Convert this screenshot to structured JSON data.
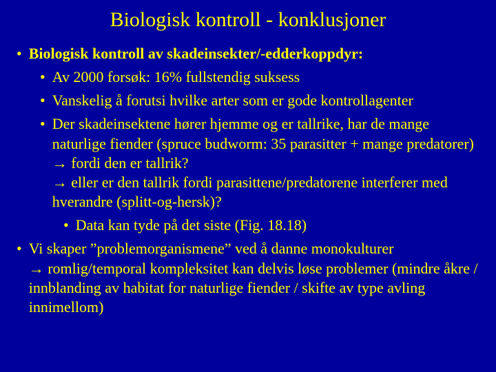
{
  "colors": {
    "background": "#00009c",
    "text": "#ffff00",
    "bullet": "#ffff00"
  },
  "typography": {
    "font_family": "Times New Roman",
    "title_fontsize": 30,
    "body_fontsize": 22,
    "line_height": 1.28
  },
  "title": "Biologisk kontroll - konklusjoner",
  "items": {
    "l1_a": "Biologisk kontroll av skadeinsekter/-edderkoppdyr:",
    "l2_a": "Av 2000 forsøk: 16% fullstendig suksess",
    "l2_b": "Vanskelig å forutsi hvilke arter som er gode kontrollagenter",
    "l2_c": "Der skadeinsektene hører hjemme og er tallrike, har de mange naturlige fiender (spruce budworm: 35 parasitter + mange predatorer)\n→ fordi den er tallrik?\n→ eller er den tallrik fordi parasittene/predatorene interferer med hverandre (splitt-og-hersk)?",
    "l3_a": "Data kan tyde på det siste (Fig. 18.18)",
    "l1_b": "Vi skaper \"problemorganismene\" ved å danne monokulturer\n→ romlig/temporal kompleksitet kan delvis løse problemer (mindre åkre / innblanding av habitat for naturlige fiender / skifte av type avling innimellom)"
  }
}
